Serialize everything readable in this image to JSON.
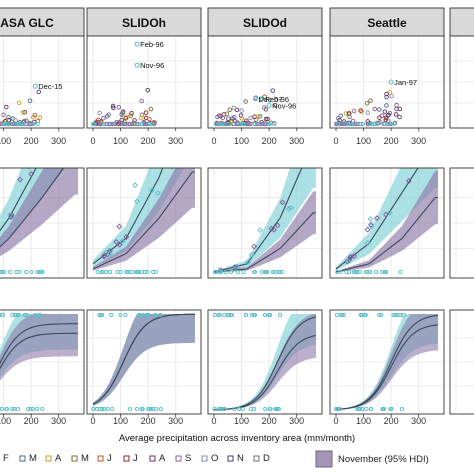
{
  "chart_data": {
    "type": "scatter",
    "xlabel": "Average precipitation across inventory area (mm/month)",
    "x_ticks": [
      "0",
      "100",
      "200",
      "300"
    ],
    "xlim": [
      0,
      370
    ],
    "panels": [
      "ASA GLC",
      "SLIDOh",
      "SLIDOd",
      "Seattle"
    ],
    "legend": {
      "months": [
        {
          "label": "F",
          "color": "#5b3f7a"
        },
        {
          "label": "M",
          "color": "#4a6a86"
        },
        {
          "label": "A",
          "color": "#c9a227"
        },
        {
          "label": "M",
          "color": "#7a6c3a"
        },
        {
          "label": "J",
          "color": "#c0532b"
        },
        {
          "label": "J",
          "color": "#8c2a1c"
        },
        {
          "label": "A",
          "color": "#6b2d5c"
        },
        {
          "label": "S",
          "color": "#8a5ba0"
        },
        {
          "label": "O",
          "color": "#7d8fb0"
        },
        {
          "label": "N",
          "color": "#4b3a7a"
        },
        {
          "label": "D",
          "color": "#6f6f6f"
        }
      ],
      "band_label": "November (95% HDI)",
      "colors": {
        "november": "#8e7aa8",
        "february": "#7ecfd6",
        "line": "#3a4a5a"
      }
    },
    "row1_annotations": [
      {
        "panel": 0,
        "label": "Dec-15",
        "x": 215,
        "y": 0.45
      },
      {
        "panel": 1,
        "label": "Feb-96",
        "x": 160,
        "y": 0.95
      },
      {
        "panel": 1,
        "label": "Nov-96",
        "x": 160,
        "y": 0.7
      },
      {
        "panel": 2,
        "label": "Dec-07",
        "x": 150,
        "y": 0.3
      },
      {
        "panel": 2,
        "label": "Feb-96",
        "x": 175,
        "y": 0.3
      },
      {
        "panel": 2,
        "label": "Nov-96",
        "x": 200,
        "y": 0.22
      },
      {
        "panel": 3,
        "label": "Jan-97",
        "x": 200,
        "y": 0.5
      }
    ],
    "row2_curves": [
      {
        "panel": 0,
        "nov": [
          0.05,
          0.35,
          0.75,
          1.2
        ],
        "feb": [
          0.1,
          0.55,
          1.15,
          1.8
        ]
      },
      {
        "panel": 1,
        "nov": [
          0.05,
          0.2,
          0.55,
          1.0
        ],
        "feb": [
          0.1,
          0.35,
          0.95,
          1.8
        ]
      },
      {
        "panel": 2,
        "nov": [
          0.02,
          0.05,
          0.25,
          0.6
        ],
        "feb": [
          0.02,
          0.1,
          0.55,
          1.3
        ]
      },
      {
        "panel": 3,
        "nov": [
          0.02,
          0.1,
          0.35,
          0.75
        ],
        "feb": [
          0.05,
          0.3,
          0.8,
          1.3
        ]
      }
    ],
    "row3_curves": [
      {
        "panel": 0,
        "midpoint": 80,
        "nov_max": 0.8,
        "feb_max": 0.9
      },
      {
        "panel": 1,
        "midpoint": 110,
        "nov_max": 1.0,
        "feb_max": 1.0
      },
      {
        "panel": 2,
        "midpoint": 230,
        "nov_max": 0.8,
        "feb_max": 1.0
      },
      {
        "panel": 3,
        "midpoint": 200,
        "nov_max": 0.9,
        "feb_max": 1.0
      }
    ]
  }
}
